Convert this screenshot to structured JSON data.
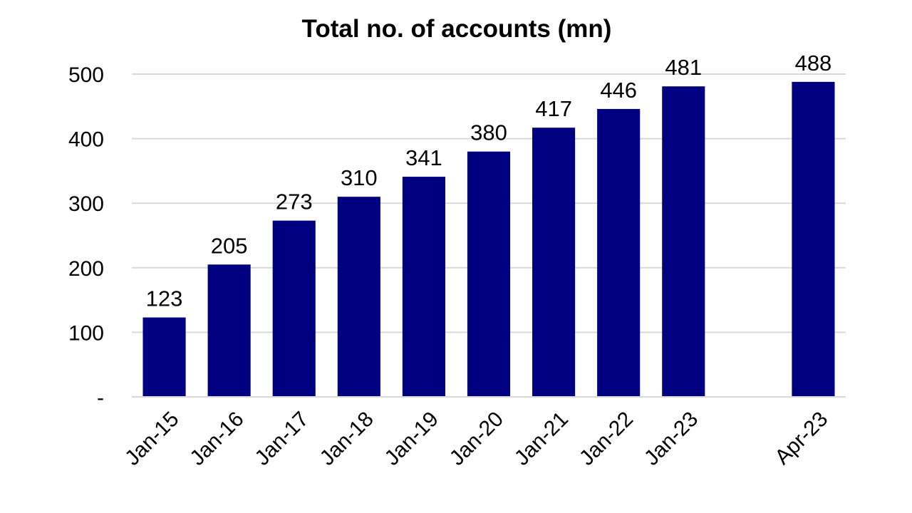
{
  "chart_data": {
    "type": "bar",
    "title": "Total no. of accounts (mn)",
    "xlabel": "",
    "ylabel": "",
    "categories": [
      "Jan-15",
      "Jan-16",
      "Jan-17",
      "Jan-18",
      "Jan-19",
      "Jan-20",
      "Jan-21",
      "Jan-22",
      "Jan-23",
      "",
      "Apr-23"
    ],
    "values": [
      123,
      205,
      273,
      310,
      341,
      380,
      417,
      446,
      481,
      null,
      488
    ],
    "data_labels": [
      "123",
      "205",
      "273",
      "310",
      "341",
      "380",
      "417",
      "446",
      "481",
      "",
      "488"
    ],
    "ylim": [
      0,
      500
    ],
    "yticks": [
      0,
      100,
      200,
      300,
      400,
      500
    ],
    "ytick_labels": [
      "-",
      "100",
      "200",
      "300",
      "400",
      "500"
    ],
    "grid": true,
    "legend": "none",
    "bar_color": "#000080",
    "grid_color": "#d9d9d9"
  }
}
